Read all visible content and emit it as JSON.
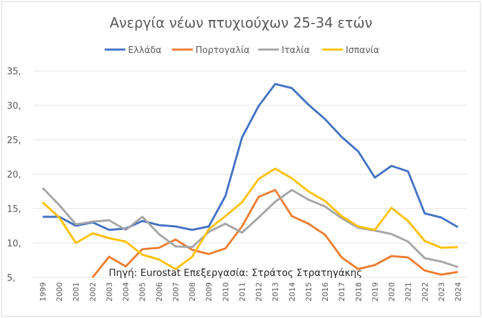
{
  "chart_data": {
    "type": "line",
    "title": "Ανεργία νέων πτυχιούχων 25-34 ετών",
    "annotation": "Πηγή: Eurostat Επεξεργασία: Στράτος Στρατηγάκης",
    "x": [
      "1999",
      "2000",
      "2001",
      "2002",
      "2003",
      "2004",
      "2005",
      "2006",
      "2007",
      "2008",
      "2009",
      "2010",
      "2011",
      "2012",
      "2013",
      "2014",
      "2015",
      "2016",
      "2017",
      "2018",
      "2019",
      "2020",
      "2021",
      "2022",
      "2023",
      "2024"
    ],
    "yticks": [
      "5,",
      "10,",
      "15,",
      "20,",
      "25,",
      "30,",
      "35,"
    ],
    "ylim": [
      5,
      35
    ],
    "grid": true,
    "legend_position": "top",
    "series": [
      {
        "name": "Ελλάδα",
        "color": "#4472C4",
        "values": [
          13.8,
          13.8,
          12.5,
          13.0,
          11.9,
          12.1,
          13.2,
          12.6,
          12.4,
          11.9,
          12.4,
          16.8,
          25.3,
          29.9,
          33.1,
          32.5,
          30.1,
          28.0,
          25.4,
          23.3,
          19.5,
          21.2,
          20.4,
          14.3,
          13.7,
          12.3
        ]
      },
      {
        "name": "Πορτογαλία",
        "color": "#ED7D31",
        "values": [
          null,
          null,
          null,
          5.0,
          8.0,
          6.6,
          9.1,
          9.3,
          10.5,
          9.0,
          8.4,
          9.2,
          12.4,
          16.7,
          17.7,
          13.9,
          12.8,
          11.2,
          7.9,
          6.2,
          6.8,
          8.1,
          7.9,
          6.0,
          5.4,
          5.8
        ]
      },
      {
        "name": "Ιταλία",
        "color": "#A5A5A5",
        "values": [
          18.0,
          15.5,
          12.7,
          13.1,
          13.3,
          11.9,
          13.8,
          11.3,
          9.5,
          9.4,
          11.6,
          12.8,
          11.5,
          13.7,
          16.0,
          17.7,
          16.3,
          15.3,
          13.6,
          12.2,
          11.8,
          11.3,
          10.2,
          7.8,
          7.3,
          6.5
        ]
      },
      {
        "name": "Ισπανία",
        "color": "#FFC000",
        "values": [
          15.9,
          13.7,
          10.0,
          11.4,
          10.7,
          10.2,
          8.3,
          7.6,
          6.2,
          8.0,
          12.0,
          13.9,
          15.9,
          19.3,
          20.8,
          19.4,
          17.5,
          16.1,
          13.9,
          12.4,
          11.9,
          15.1,
          13.2,
          10.3,
          9.3,
          9.4
        ]
      }
    ]
  }
}
